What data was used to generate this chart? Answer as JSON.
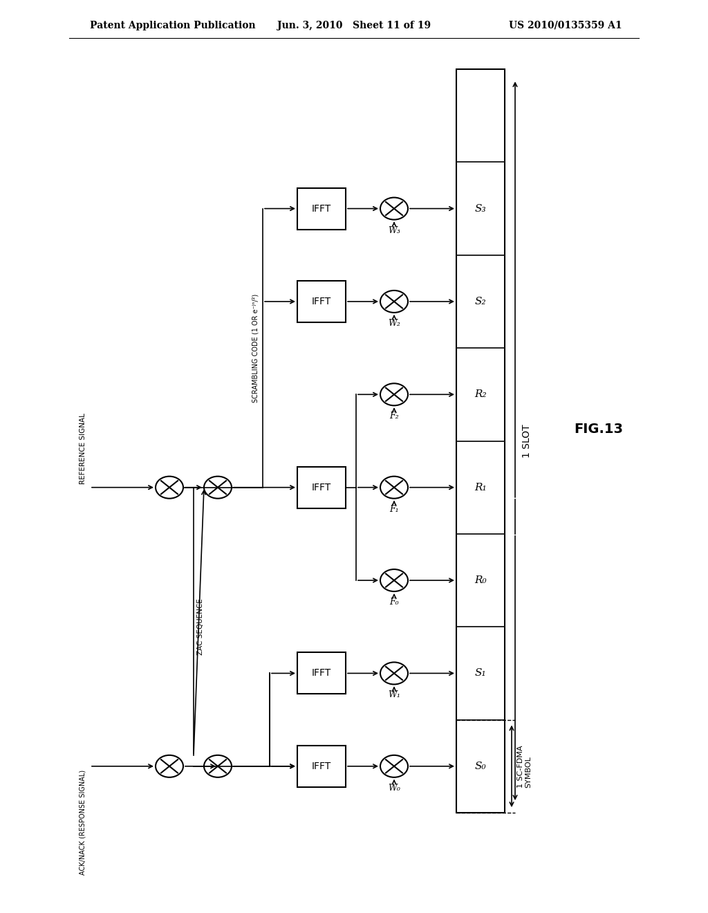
{
  "title_left": "Patent Application Publication",
  "title_center": "Jun. 3, 2010   Sheet 11 of 19",
  "title_right": "US 2010/0135359 A1",
  "fig_label": "FIG.13",
  "slot_label": "1 SLOT",
  "sc_fdma_label": "1 SC-FDMA\nSYMBOL",
  "background": "#ffffff",
  "text_color": "#000000"
}
